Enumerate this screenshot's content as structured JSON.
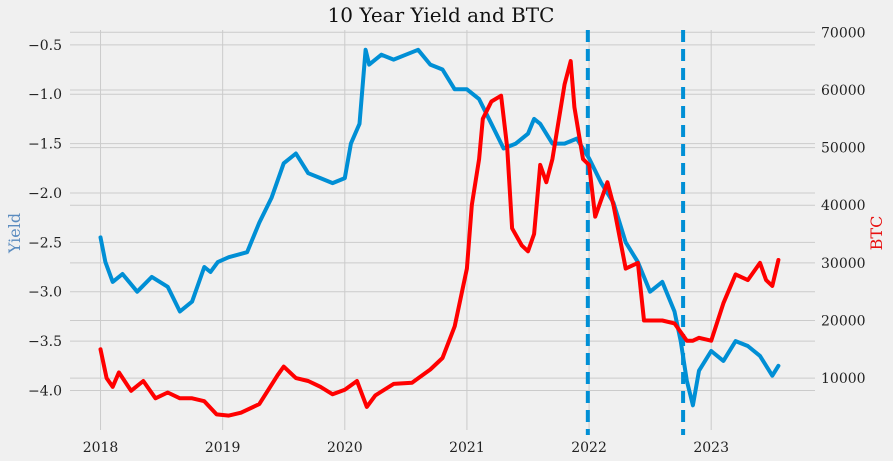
{
  "chart_data": {
    "type": "line",
    "title": "10 Year Yield and BTC",
    "xlabel": "",
    "ylabel": "Yield",
    "y2label": "BTC",
    "x_ticks": [
      "2018",
      "2019",
      "2020",
      "2021",
      "2022",
      "2023"
    ],
    "xlim": [
      2017.75,
      2023.85
    ],
    "ylim": [
      -4.4,
      -0.35
    ],
    "y_ticks": [
      -0.5,
      -1.0,
      -1.5,
      -2.0,
      -2.5,
      -3.0,
      -3.5,
      -4.0
    ],
    "y2lim": [
      1000,
      70400
    ],
    "y2_ticks": [
      10000,
      20000,
      30000,
      40000,
      50000,
      60000,
      70000
    ],
    "grid": true,
    "vlines": [
      2021.99,
      2022.77
    ],
    "colors": {
      "yield": "#008fd5",
      "btc": "#ff0000",
      "background": "#f0f0f0",
      "grid": "#cbcbcb"
    },
    "series": [
      {
        "name": "Yield",
        "axis": "left",
        "color": "#008fd5",
        "x": [
          2018.0,
          2018.04,
          2018.1,
          2018.18,
          2018.3,
          2018.42,
          2018.55,
          2018.65,
          2018.75,
          2018.85,
          2018.9,
          2018.96,
          2019.05,
          2019.2,
          2019.3,
          2019.4,
          2019.5,
          2019.6,
          2019.7,
          2019.8,
          2019.9,
          2020.0,
          2020.05,
          2020.12,
          2020.17,
          2020.2,
          2020.3,
          2020.4,
          2020.5,
          2020.6,
          2020.7,
          2020.8,
          2020.9,
          2021.0,
          2021.1,
          2021.2,
          2021.3,
          2021.4,
          2021.5,
          2021.55,
          2021.6,
          2021.7,
          2021.8,
          2021.9,
          2022.0,
          2022.1,
          2022.2,
          2022.3,
          2022.4,
          2022.5,
          2022.6,
          2022.7,
          2022.75,
          2022.8,
          2022.85,
          2022.9,
          2023.0,
          2023.1,
          2023.2,
          2023.3,
          2023.4,
          2023.5,
          2023.55
        ],
        "values": [
          -2.45,
          -2.7,
          -2.9,
          -2.82,
          -3.0,
          -2.85,
          -2.95,
          -3.2,
          -3.1,
          -2.75,
          -2.8,
          -2.7,
          -2.65,
          -2.6,
          -2.3,
          -2.05,
          -1.7,
          -1.6,
          -1.8,
          -1.85,
          -1.9,
          -1.85,
          -1.5,
          -1.3,
          -0.55,
          -0.7,
          -0.6,
          -0.65,
          -0.6,
          -0.55,
          -0.7,
          -0.75,
          -0.95,
          -0.95,
          -1.05,
          -1.3,
          -1.55,
          -1.5,
          -1.4,
          -1.25,
          -1.3,
          -1.5,
          -1.5,
          -1.45,
          -1.65,
          -1.9,
          -2.1,
          -2.5,
          -2.7,
          -3.0,
          -2.9,
          -3.2,
          -3.5,
          -3.9,
          -4.15,
          -3.8,
          -3.6,
          -3.7,
          -3.5,
          -3.55,
          -3.65,
          -3.85,
          -3.75
        ]
      },
      {
        "name": "BTC",
        "axis": "right",
        "color": "#ff0000",
        "x": [
          2018.0,
          2018.05,
          2018.1,
          2018.15,
          2018.25,
          2018.35,
          2018.45,
          2018.55,
          2018.65,
          2018.75,
          2018.85,
          2018.95,
          2019.05,
          2019.15,
          2019.3,
          2019.45,
          2019.5,
          2019.6,
          2019.7,
          2019.8,
          2019.9,
          2020.0,
          2020.1,
          2020.18,
          2020.25,
          2020.4,
          2020.55,
          2020.7,
          2020.8,
          2020.9,
          2021.0,
          2021.04,
          2021.1,
          2021.13,
          2021.2,
          2021.28,
          2021.33,
          2021.37,
          2021.45,
          2021.5,
          2021.55,
          2021.6,
          2021.65,
          2021.7,
          2021.8,
          2021.85,
          2021.88,
          2021.95,
          2022.0,
          2022.05,
          2022.15,
          2022.2,
          2022.3,
          2022.4,
          2022.45,
          2022.5,
          2022.6,
          2022.7,
          2022.8,
          2022.85,
          2022.9,
          2023.0,
          2023.1,
          2023.2,
          2023.3,
          2023.4,
          2023.45,
          2023.5,
          2023.55
        ],
        "values": [
          15000,
          10000,
          8500,
          11000,
          7800,
          9500,
          6500,
          7500,
          6500,
          6500,
          6000,
          3700,
          3500,
          4000,
          5500,
          10500,
          12000,
          10000,
          9500,
          8500,
          7200,
          8000,
          9500,
          5000,
          7000,
          9000,
          9200,
          11500,
          13500,
          19000,
          29000,
          40000,
          48000,
          55000,
          58000,
          59000,
          50000,
          36000,
          33000,
          32000,
          35000,
          47000,
          44000,
          48000,
          61000,
          65000,
          57000,
          48000,
          47000,
          38000,
          44000,
          40000,
          29000,
          30000,
          20000,
          20000,
          20000,
          19500,
          16500,
          16500,
          17000,
          16500,
          23000,
          28000,
          27000,
          30000,
          27000,
          26000,
          30500
        ]
      }
    ]
  }
}
